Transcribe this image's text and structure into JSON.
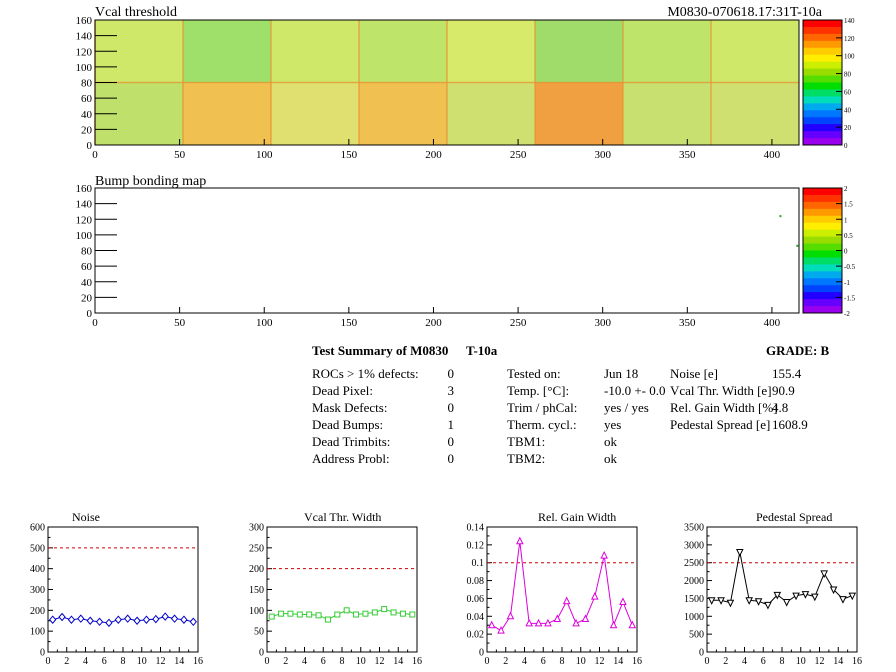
{
  "maps": {
    "vcal": {
      "title": "Vcal threshold",
      "module_id": "M0830-070618.17:31T-10a",
      "xlim": [
        0,
        416
      ],
      "ylim": [
        0,
        160
      ],
      "xticks": [
        0,
        50,
        100,
        150,
        200,
        250,
        300,
        350,
        400
      ],
      "yticks": [
        0,
        20,
        40,
        60,
        80,
        100,
        120,
        140,
        160
      ],
      "palette_ticks": [
        "140",
        "120",
        "100",
        "80",
        "60",
        "40",
        "20",
        "0"
      ]
    },
    "bump": {
      "title": "Bump bonding map",
      "xlim": [
        0,
        416
      ],
      "ylim": [
        0,
        160
      ],
      "xticks": [
        0,
        50,
        100,
        150,
        200,
        250,
        300,
        350,
        400
      ],
      "yticks": [
        0,
        20,
        40,
        60,
        80,
        100,
        120,
        140,
        160
      ],
      "palette_ticks": [
        "2",
        "1.5",
        "1",
        "0.5",
        "0",
        "-0.5",
        "-1",
        "-1.5",
        "-2"
      ],
      "marked_pixels": [
        {
          "x": 405,
          "y": 124
        },
        {
          "x": 415,
          "y": 86
        }
      ]
    }
  },
  "summary": {
    "title": "Test Summary of M0830",
    "temp_tag": "T-10a",
    "grade_label": "GRADE:  B",
    "left_rows": [
      {
        "label": "ROCs > 1% defects:",
        "value": "0"
      },
      {
        "label": "Dead Pixel:",
        "value": "3"
      },
      {
        "label": "Mask Defects:",
        "value": "0"
      },
      {
        "label": "Dead Bumps:",
        "value": "1"
      },
      {
        "label": "Dead Trimbits:",
        "value": "0"
      },
      {
        "label": "Address Probl:",
        "value": "0"
      }
    ],
    "mid_rows": [
      {
        "label": "Tested on:",
        "value": "Jun 18"
      },
      {
        "label": "Temp. [°C]:",
        "value": "-10.0 +- 0.0"
      },
      {
        "label": "Trim / phCal:",
        "value": "yes / yes"
      },
      {
        "label": "Therm. cycl.:",
        "value": "yes"
      },
      {
        "label": "TBM1:",
        "value": "ok"
      },
      {
        "label": "TBM2:",
        "value": "ok"
      }
    ],
    "right_rows": [
      {
        "label": "Noise [e]",
        "value": "155.4"
      },
      {
        "label": "Vcal Thr. Width [e]",
        "value": "90.9"
      },
      {
        "label": "Rel. Gain Width [%]",
        "value": "4.8"
      },
      {
        "label": "Pedestal Spread [e]",
        "value": "1608.9"
      }
    ]
  },
  "chart_data": [
    {
      "type": "line",
      "title": "Noise",
      "color": "#0000cc",
      "marker": "diamond",
      "x": [
        0.5,
        1.5,
        2.5,
        3.5,
        4.5,
        5.5,
        6.5,
        7.5,
        8.5,
        9.5,
        10.5,
        11.5,
        12.5,
        13.5,
        14.5,
        15.5
      ],
      "values": [
        155,
        168,
        155,
        160,
        150,
        145,
        140,
        155,
        160,
        150,
        155,
        158,
        170,
        160,
        155,
        145
      ],
      "xlim": [
        0,
        16
      ],
      "ylim": [
        0,
        600
      ],
      "threshold": 500,
      "xticks": [
        0,
        2,
        4,
        6,
        8,
        10,
        12,
        14,
        16
      ],
      "yticks": [
        0,
        100,
        200,
        300,
        400,
        500,
        600
      ]
    },
    {
      "type": "line",
      "title": "Vcal Thr. Width",
      "color": "#33cc33",
      "marker": "square",
      "x": [
        0.5,
        1.5,
        2.5,
        3.5,
        4.5,
        5.5,
        6.5,
        7.5,
        8.5,
        9.5,
        10.5,
        11.5,
        12.5,
        13.5,
        14.5,
        15.5
      ],
      "values": [
        85,
        92,
        92,
        90,
        90,
        88,
        78,
        90,
        100,
        90,
        92,
        95,
        103,
        95,
        92,
        90
      ],
      "xlim": [
        0,
        16
      ],
      "ylim": [
        0,
        300
      ],
      "threshold": 200,
      "xticks": [
        0,
        2,
        4,
        6,
        8,
        10,
        12,
        14,
        16
      ],
      "yticks": [
        0,
        50,
        100,
        150,
        200,
        250,
        300
      ]
    },
    {
      "type": "line",
      "title": "Rel. Gain Width",
      "color": "#dd00dd",
      "marker": "triangle",
      "x": [
        0.5,
        1.5,
        2.5,
        3.5,
        4.5,
        5.5,
        6.5,
        7.5,
        8.5,
        9.5,
        10.5,
        11.5,
        12.5,
        13.5,
        14.5,
        15.5
      ],
      "values": [
        0.03,
        0.024,
        0.04,
        0.124,
        0.032,
        0.032,
        0.032,
        0.037,
        0.057,
        0.032,
        0.037,
        0.062,
        0.108,
        0.03,
        0.056,
        0.03
      ],
      "xlim": [
        0,
        16
      ],
      "ylim": [
        0,
        0.14
      ],
      "threshold": 0.1,
      "xticks": [
        0,
        2,
        4,
        6,
        8,
        10,
        12,
        14,
        16
      ],
      "yticks": [
        0,
        0.02,
        0.04,
        0.06,
        0.08,
        0.1,
        0.12,
        0.14
      ]
    },
    {
      "type": "line",
      "title": "Pedestal Spread",
      "color": "#000000",
      "marker": "triangle-down",
      "x": [
        0.5,
        1.5,
        2.5,
        3.5,
        4.5,
        5.5,
        6.5,
        7.5,
        8.5,
        9.5,
        10.5,
        11.5,
        12.5,
        13.5,
        14.5,
        15.5
      ],
      "values": [
        1450,
        1450,
        1380,
        2800,
        1450,
        1420,
        1320,
        1600,
        1400,
        1580,
        1620,
        1550,
        2200,
        1750,
        1480,
        1580
      ],
      "xlim": [
        0,
        16
      ],
      "ylim": [
        0,
        3500
      ],
      "threshold": 2500,
      "xticks": [
        0,
        2,
        4,
        6,
        8,
        10,
        12,
        14,
        16
      ],
      "yticks": [
        0,
        500,
        1000,
        1500,
        2000,
        2500,
        3000,
        3500
      ]
    }
  ]
}
